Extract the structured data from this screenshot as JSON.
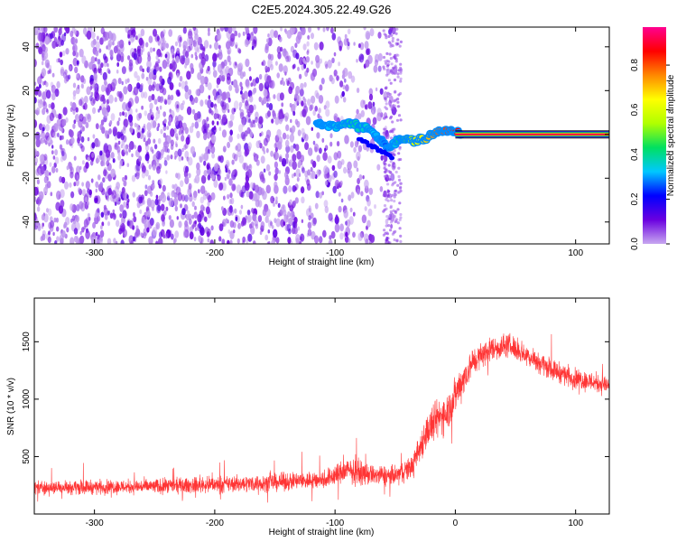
{
  "title": "C2E5.2024.305.22.49.G26",
  "chart_data": [
    {
      "type": "heatmap",
      "xlabel": "Height of straight line (km)",
      "ylabel": "Frequency (Hz)",
      "xlim": [
        -350,
        128
      ],
      "ylim": [
        -50,
        49
      ],
      "xticks": [
        -300,
        -200,
        -100,
        0,
        100
      ],
      "yticks": [
        -40,
        -20,
        0,
        20,
        40
      ],
      "colorbar": {
        "label": "Normalized spectral amplitude",
        "range": [
          0.0,
          0.97
        ],
        "ticks": [
          0.0,
          0.2,
          0.4,
          0.6,
          0.8
        ],
        "colormap": [
          "#c8a8f0",
          "#6a00e0",
          "#0000ff",
          "#00c8ff",
          "#00e060",
          "#b0ff00",
          "#ffff00",
          "#ff8800",
          "#ff0000",
          "#ff0090"
        ]
      },
      "features": {
        "carrier_line": {
          "x": [
            0,
            128
          ],
          "freq": 0,
          "amplitude": 0.95
        },
        "signal_track": [
          {
            "x": -115,
            "freq": 5,
            "amplitude": 0.3
          },
          {
            "x": -100,
            "freq": 4,
            "amplitude": 0.35
          },
          {
            "x": -85,
            "freq": 5,
            "amplitude": 0.4
          },
          {
            "x": -70,
            "freq": 2,
            "amplitude": 0.35
          },
          {
            "x": -55,
            "freq": -6,
            "amplitude": 0.25
          },
          {
            "x": -45,
            "freq": -2,
            "amplitude": 0.45
          },
          {
            "x": -35,
            "freq": -3,
            "amplitude": 0.6
          },
          {
            "x": -25,
            "freq": -2,
            "amplitude": 0.7
          },
          {
            "x": -15,
            "freq": 1,
            "amplitude": 0.8
          },
          {
            "x": -5,
            "freq": 2,
            "amplitude": 0.85
          },
          {
            "x": 5,
            "freq": 1,
            "amplitude": 0.9
          }
        ],
        "noise_extent_x": [
          -350,
          -50
        ]
      }
    },
    {
      "type": "line",
      "xlabel": "Height of straight line (km)",
      "ylabel": "SNR (10 * v/v)",
      "xlim": [
        -350,
        128
      ],
      "ylim": [
        0,
        1880
      ],
      "xticks": [
        -300,
        -200,
        -100,
        0,
        100
      ],
      "yticks": [
        500,
        1000,
        1500
      ],
      "series": [
        {
          "color": "#ff2a2a",
          "envelope": {
            "x": [
              -350,
              -300,
              -250,
              -200,
              -150,
              -110,
              -90,
              -70,
              -50,
              -35,
              -25,
              -15,
              -5,
              5,
              15,
              30,
              45,
              60,
              80,
              100,
              128
            ],
            "mean": [
              230,
              235,
              240,
              255,
              275,
              300,
              380,
              340,
              330,
              420,
              700,
              820,
              920,
              1150,
              1330,
              1440,
              1470,
              1380,
              1260,
              1180,
              1120
            ],
            "spread": [
              90,
              90,
              95,
              100,
              110,
              120,
              160,
              130,
              130,
              150,
              230,
              250,
              250,
              230,
              180,
              160,
              150,
              140,
              130,
              130,
              130
            ]
          }
        }
      ]
    }
  ]
}
